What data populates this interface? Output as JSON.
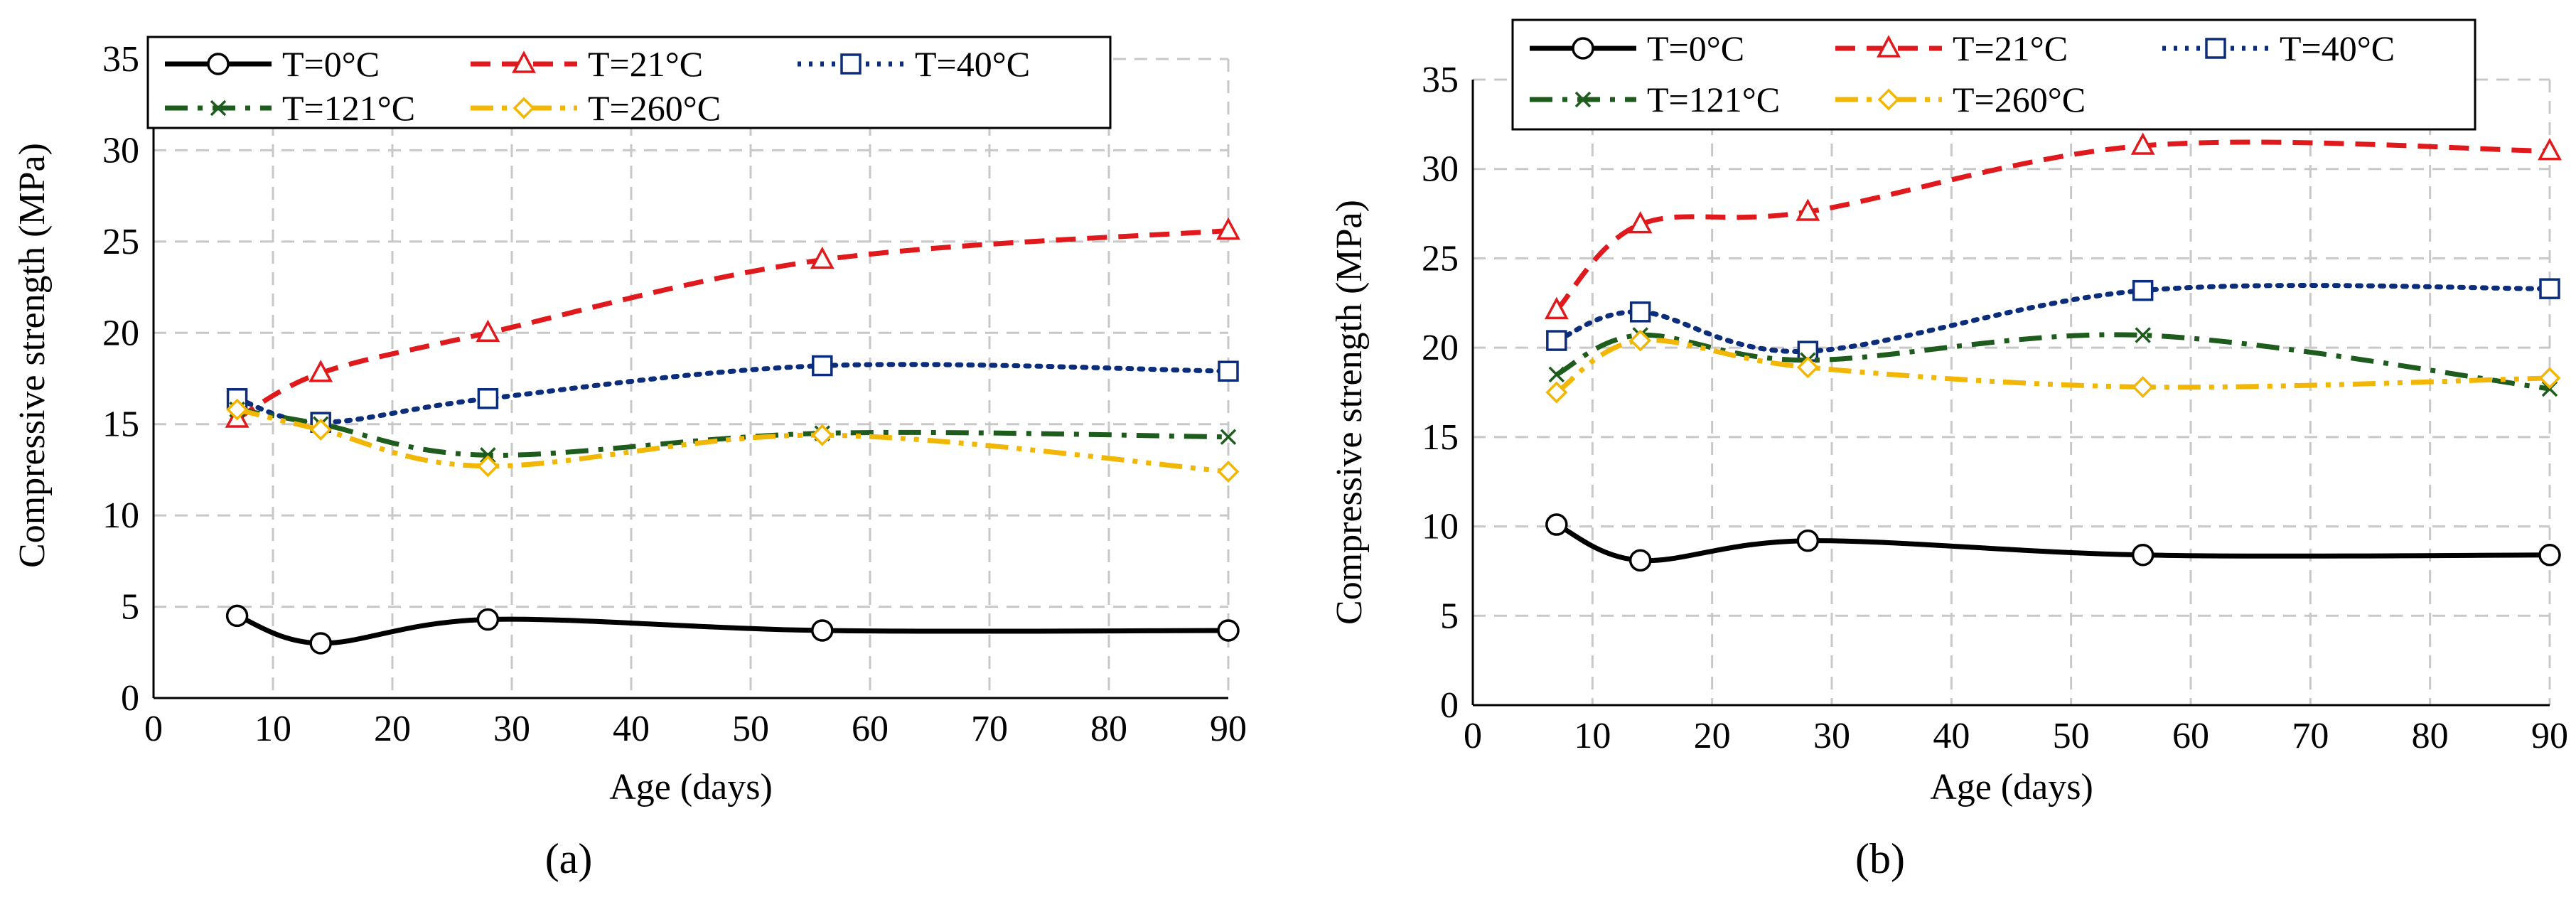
{
  "chart_data": [
    {
      "type": "line",
      "panel_label": "(a)",
      "xlabel": "Age (days)",
      "ylabel": "Compressive  strength (MPa)",
      "xlim": [
        0,
        90
      ],
      "ylim": [
        0,
        35
      ],
      "xticks": [
        0,
        10,
        20,
        30,
        40,
        50,
        60,
        70,
        80,
        90
      ],
      "yticks": [
        0,
        5,
        10,
        15,
        20,
        25,
        30,
        35
      ],
      "grid": true,
      "legend": "top",
      "series": [
        {
          "name": "T=0°C",
          "color": "#000000",
          "marker": "circle",
          "dash": "solid",
          "x": [
            7,
            14,
            28,
            56,
            90
          ],
          "y": [
            4.5,
            3.0,
            4.3,
            3.7,
            3.7
          ]
        },
        {
          "name": "T=21°C",
          "color": "#e0191c",
          "marker": "triangle",
          "dash": "dash",
          "x": [
            7,
            14,
            28,
            56,
            90
          ],
          "y": [
            15.3,
            17.8,
            20.0,
            24.0,
            25.6
          ]
        },
        {
          "name": "T=40°C",
          "color": "#0b2d7a",
          "marker": "square",
          "dash": "dot",
          "x": [
            7,
            14,
            28,
            56,
            90
          ],
          "y": [
            16.4,
            15.1,
            16.4,
            18.2,
            17.9
          ]
        },
        {
          "name": "T=121°C",
          "color": "#1e5c1e",
          "marker": "x",
          "dash": "dashdot",
          "x": [
            7,
            14,
            28,
            56,
            90
          ],
          "y": [
            15.8,
            15.0,
            13.3,
            14.5,
            14.3
          ]
        },
        {
          "name": "T=260°C",
          "color": "#f2b705",
          "marker": "diamond",
          "dash": "dashdotdot",
          "x": [
            7,
            14,
            28,
            56,
            90
          ],
          "y": [
            15.8,
            14.7,
            12.7,
            14.4,
            12.4
          ]
        }
      ]
    },
    {
      "type": "line",
      "panel_label": "(b)",
      "xlabel": "Age (days)",
      "ylabel": "Compressive  strength (MPa)",
      "xlim": [
        0,
        90
      ],
      "ylim": [
        0,
        35
      ],
      "xticks": [
        0,
        10,
        20,
        30,
        40,
        50,
        60,
        70,
        80,
        90
      ],
      "yticks": [
        0,
        5,
        10,
        15,
        20,
        25,
        30,
        35
      ],
      "grid": true,
      "legend": "top",
      "series": [
        {
          "name": "T=0°C",
          "color": "#000000",
          "marker": "circle",
          "dash": "solid",
          "x": [
            7,
            14,
            28,
            56,
            90
          ],
          "y": [
            10.1,
            8.1,
            9.2,
            8.4,
            8.4
          ]
        },
        {
          "name": "T=21°C",
          "color": "#e0191c",
          "marker": "triangle",
          "dash": "dash",
          "x": [
            7,
            14,
            28,
            56,
            90
          ],
          "y": [
            22.1,
            26.9,
            27.6,
            31.3,
            31.0
          ]
        },
        {
          "name": "T=40°C",
          "color": "#0b2d7a",
          "marker": "square",
          "dash": "dot",
          "x": [
            7,
            14,
            28,
            56,
            90
          ],
          "y": [
            20.4,
            22.0,
            19.8,
            23.2,
            23.3
          ]
        },
        {
          "name": "T=121°C",
          "color": "#1e5c1e",
          "marker": "x",
          "dash": "dashdot",
          "x": [
            7,
            14,
            28,
            56,
            90
          ],
          "y": [
            18.5,
            20.7,
            19.3,
            20.7,
            17.7
          ]
        },
        {
          "name": "T=260°C",
          "color": "#f2b705",
          "marker": "diamond",
          "dash": "dashdotdot",
          "x": [
            7,
            14,
            28,
            56,
            90
          ],
          "y": [
            17.5,
            20.4,
            18.9,
            17.8,
            18.3
          ]
        }
      ]
    }
  ]
}
